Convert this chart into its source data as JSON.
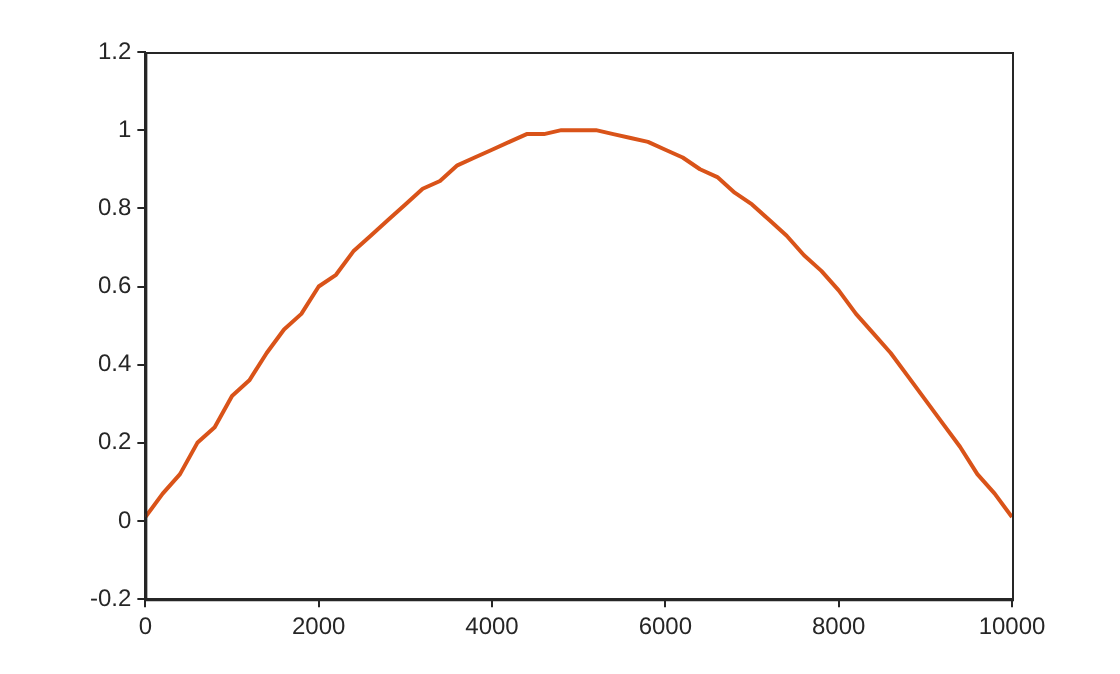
{
  "chart_data": {
    "type": "line",
    "x": [
      0,
      200,
      400,
      600,
      800,
      1000,
      1200,
      1400,
      1600,
      1800,
      2000,
      2200,
      2400,
      2600,
      2800,
      3000,
      3200,
      3400,
      3600,
      3800,
      4000,
      4200,
      4400,
      4600,
      4800,
      5000,
      5200,
      5400,
      5600,
      5800,
      6000,
      6200,
      6400,
      6600,
      6800,
      7000,
      7200,
      7400,
      7600,
      7800,
      8000,
      8200,
      8400,
      8600,
      8800,
      9000,
      9200,
      9400,
      9600,
      9800,
      10000
    ],
    "series": [
      {
        "color": "#d95319",
        "values": [
          0.01,
          0.07,
          0.12,
          0.2,
          0.24,
          0.32,
          0.36,
          0.43,
          0.49,
          0.53,
          0.6,
          0.63,
          0.69,
          0.73,
          0.77,
          0.81,
          0.85,
          0.87,
          0.91,
          0.93,
          0.95,
          0.97,
          0.99,
          0.99,
          1.0,
          1.0,
          1.0,
          0.99,
          0.98,
          0.97,
          0.95,
          0.93,
          0.9,
          0.88,
          0.84,
          0.81,
          0.77,
          0.73,
          0.68,
          0.64,
          0.59,
          0.53,
          0.48,
          0.43,
          0.37,
          0.31,
          0.25,
          0.19,
          0.12,
          0.07,
          0.01
        ]
      }
    ],
    "xlim": [
      0,
      10000
    ],
    "xticks": [
      0,
      2000,
      4000,
      6000,
      8000,
      10000
    ],
    "ylim": [
      -0.2,
      1.2
    ],
    "yticks": [
      -0.2,
      0,
      0.2,
      0.4,
      0.6,
      0.8,
      1,
      1.2
    ],
    "grid": false,
    "legend": false,
    "marker": "none",
    "line_style": "solid"
  }
}
